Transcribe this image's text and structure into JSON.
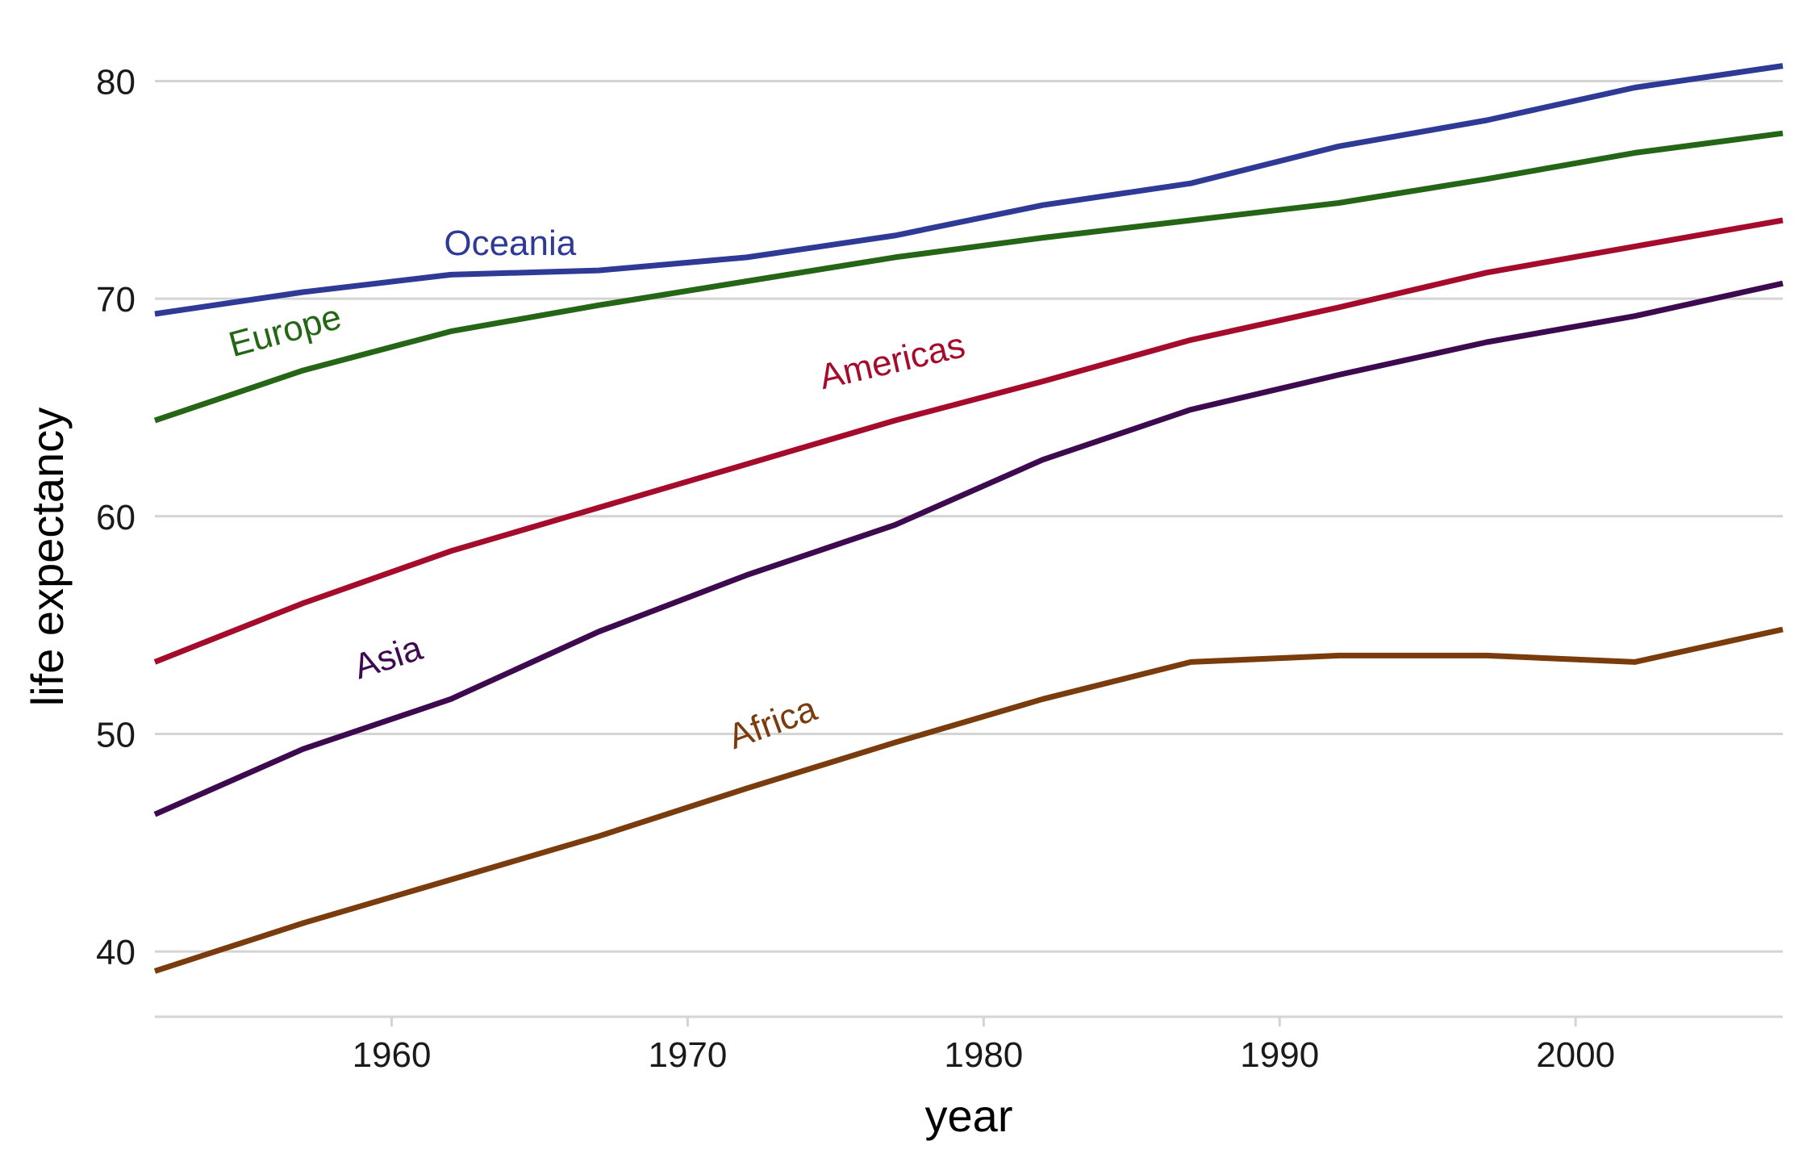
{
  "chart_data": {
    "type": "line",
    "xlabel": "year",
    "ylabel": "life expectancy",
    "xlim": [
      1952,
      2007
    ],
    "ylim": [
      37,
      81.5
    ],
    "xticks": [
      1960,
      1970,
      1980,
      1990,
      2000
    ],
    "yticks": [
      40,
      50,
      60,
      70,
      80
    ],
    "grid": {
      "horizontal": true,
      "vertical": false
    },
    "legend": "none (direct labels on lines)",
    "x": [
      1952,
      1957,
      1962,
      1967,
      1972,
      1977,
      1982,
      1987,
      1992,
      1997,
      2002,
      2007
    ],
    "series": [
      {
        "name": "Oceania",
        "color": "#2e3a95",
        "values": [
          69.3,
          70.3,
          71.1,
          71.3,
          71.9,
          72.9,
          74.3,
          75.3,
          77.0,
          78.2,
          79.7,
          80.7
        ],
        "label_at": {
          "x": 1964,
          "y": 72.0,
          "angle": 0
        }
      },
      {
        "name": "Europe",
        "color": "#256616",
        "values": [
          64.4,
          66.7,
          68.5,
          69.7,
          70.8,
          71.9,
          72.8,
          73.6,
          74.4,
          75.5,
          76.7,
          77.6
        ],
        "label_at": {
          "x": 1956.5,
          "y": 68.0,
          "angle": -15
        }
      },
      {
        "name": "Americas",
        "color": "#a50c2b",
        "values": [
          53.3,
          56.0,
          58.4,
          60.4,
          62.4,
          64.4,
          66.2,
          68.1,
          69.6,
          71.2,
          72.4,
          73.6
        ],
        "label_at": {
          "x": 1977,
          "y": 66.6,
          "angle": -13
        }
      },
      {
        "name": "Asia",
        "color": "#3e0a4f",
        "values": [
          46.3,
          49.3,
          51.6,
          54.7,
          57.3,
          59.6,
          62.6,
          64.9,
          66.5,
          68.0,
          69.2,
          70.7
        ],
        "label_at": {
          "x": 1960,
          "y": 53.0,
          "angle": -18
        }
      },
      {
        "name": "Africa",
        "color": "#7a3b0d",
        "values": [
          39.1,
          41.3,
          43.3,
          45.3,
          47.5,
          49.6,
          51.6,
          53.3,
          53.6,
          53.6,
          53.3,
          54.8
        ],
        "label_at": {
          "x": 1973,
          "y": 50.0,
          "angle": -20
        }
      }
    ]
  }
}
